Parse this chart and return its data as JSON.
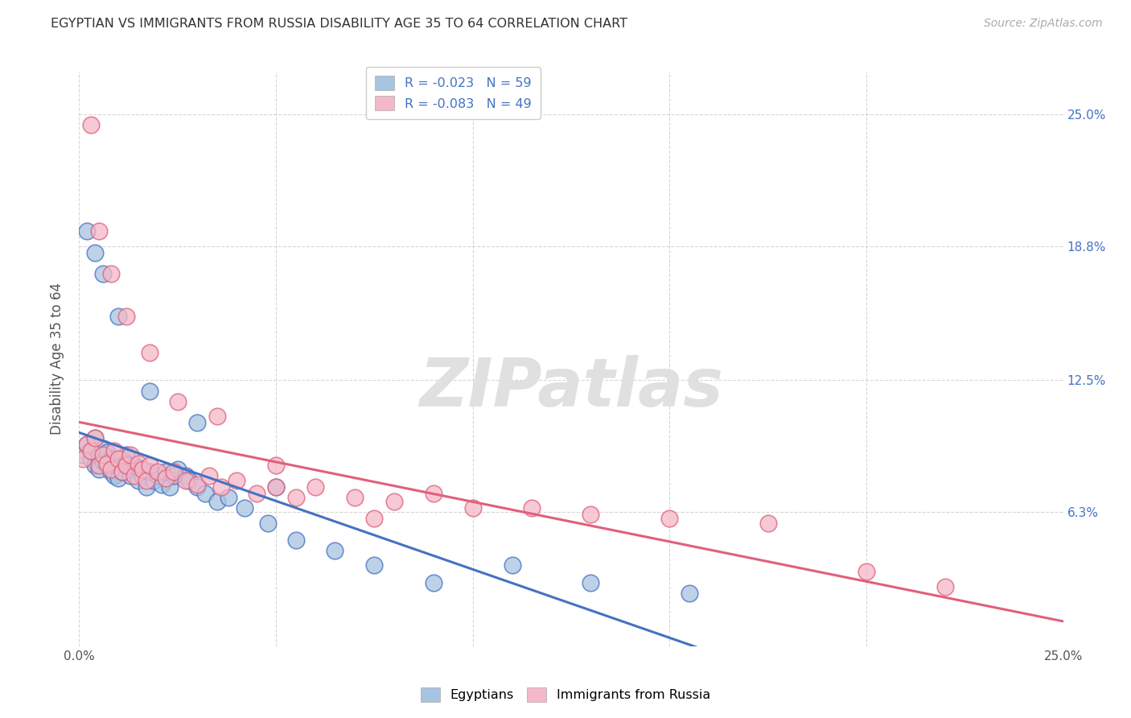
{
  "title": "EGYPTIAN VS IMMIGRANTS FROM RUSSIA DISABILITY AGE 35 TO 64 CORRELATION CHART",
  "source": "Source: ZipAtlas.com",
  "ylabel": "Disability Age 35 to 64",
  "xlim": [
    0.0,
    0.25
  ],
  "ylim": [
    0.0,
    0.27
  ],
  "yticks": [
    0.0,
    0.063,
    0.125,
    0.188,
    0.25
  ],
  "xticks": [
    0.0,
    0.05,
    0.1,
    0.15,
    0.2,
    0.25
  ],
  "legend_r1": "R = -0.023   N = 59",
  "legend_r2": "R = -0.083   N = 49",
  "color_blue": "#a8c4e0",
  "color_pink": "#f4b8c8",
  "line_blue": "#4472c4",
  "line_pink": "#e0607a",
  "background_color": "#ffffff",
  "watermark": "ZIPatlas",
  "egyptians_x": [
    0.001,
    0.002,
    0.003,
    0.003,
    0.004,
    0.004,
    0.005,
    0.005,
    0.006,
    0.006,
    0.007,
    0.007,
    0.008,
    0.008,
    0.009,
    0.009,
    0.01,
    0.01,
    0.011,
    0.011,
    0.012,
    0.012,
    0.013,
    0.013,
    0.014,
    0.015,
    0.015,
    0.016,
    0.017,
    0.018,
    0.019,
    0.02,
    0.021,
    0.022,
    0.023,
    0.024,
    0.025,
    0.027,
    0.028,
    0.03,
    0.032,
    0.035,
    0.038,
    0.042,
    0.048,
    0.055,
    0.065,
    0.075,
    0.09,
    0.11,
    0.13,
    0.155,
    0.002,
    0.004,
    0.006,
    0.01,
    0.018,
    0.03,
    0.05
  ],
  "egyptians_y": [
    0.09,
    0.095,
    0.088,
    0.092,
    0.085,
    0.098,
    0.083,
    0.09,
    0.087,
    0.093,
    0.085,
    0.091,
    0.082,
    0.088,
    0.08,
    0.086,
    0.084,
    0.079,
    0.088,
    0.082,
    0.09,
    0.086,
    0.083,
    0.08,
    0.085,
    0.078,
    0.084,
    0.08,
    0.075,
    0.082,
    0.078,
    0.08,
    0.076,
    0.082,
    0.075,
    0.08,
    0.083,
    0.08,
    0.078,
    0.075,
    0.072,
    0.068,
    0.07,
    0.065,
    0.058,
    0.05,
    0.045,
    0.038,
    0.03,
    0.038,
    0.03,
    0.025,
    0.195,
    0.185,
    0.175,
    0.155,
    0.12,
    0.105,
    0.075
  ],
  "russia_x": [
    0.001,
    0.002,
    0.003,
    0.004,
    0.005,
    0.006,
    0.007,
    0.008,
    0.009,
    0.01,
    0.011,
    0.012,
    0.013,
    0.014,
    0.015,
    0.016,
    0.017,
    0.018,
    0.02,
    0.022,
    0.024,
    0.027,
    0.03,
    0.033,
    0.036,
    0.04,
    0.045,
    0.05,
    0.055,
    0.06,
    0.07,
    0.08,
    0.09,
    0.1,
    0.115,
    0.13,
    0.15,
    0.175,
    0.2,
    0.22,
    0.003,
    0.005,
    0.008,
    0.012,
    0.018,
    0.025,
    0.035,
    0.05,
    0.075
  ],
  "russia_y": [
    0.088,
    0.095,
    0.092,
    0.098,
    0.085,
    0.09,
    0.086,
    0.083,
    0.092,
    0.088,
    0.082,
    0.085,
    0.09,
    0.08,
    0.086,
    0.083,
    0.078,
    0.085,
    0.082,
    0.079,
    0.082,
    0.078,
    0.076,
    0.08,
    0.075,
    0.078,
    0.072,
    0.075,
    0.07,
    0.075,
    0.07,
    0.068,
    0.072,
    0.065,
    0.065,
    0.062,
    0.06,
    0.058,
    0.035,
    0.028,
    0.245,
    0.195,
    0.175,
    0.155,
    0.138,
    0.115,
    0.108,
    0.085,
    0.06
  ]
}
